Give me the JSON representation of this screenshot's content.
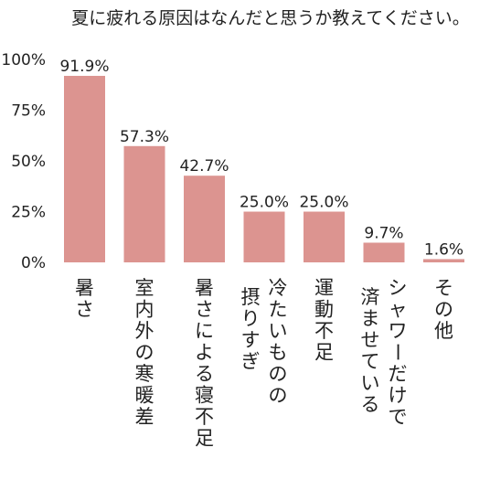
{
  "chart_data": {
    "type": "bar",
    "title": "夏に疲れる原因はなんだと思うか教えてください。",
    "categories": [
      "暑さ",
      "室内外の寒暖差",
      "暑さによる寝不足",
      "冷たいものの 摂りすぎ",
      "運動不足",
      "シャワーだけで 済ませている",
      "その他"
    ],
    "values": [
      91.9,
      57.3,
      42.7,
      25.0,
      25.0,
      9.7,
      1.6
    ],
    "value_labels": [
      "91.9%",
      "57.3%",
      "42.7%",
      "25.0%",
      "25.0%",
      "9.7%",
      "1.6%"
    ],
    "yticks": [
      "0%",
      "25%",
      "50%",
      "75%",
      "100%"
    ],
    "ylim": [
      0,
      100
    ],
    "xlabel": "",
    "ylabel": "",
    "bar_color": "#dc9490",
    "grid": false
  }
}
